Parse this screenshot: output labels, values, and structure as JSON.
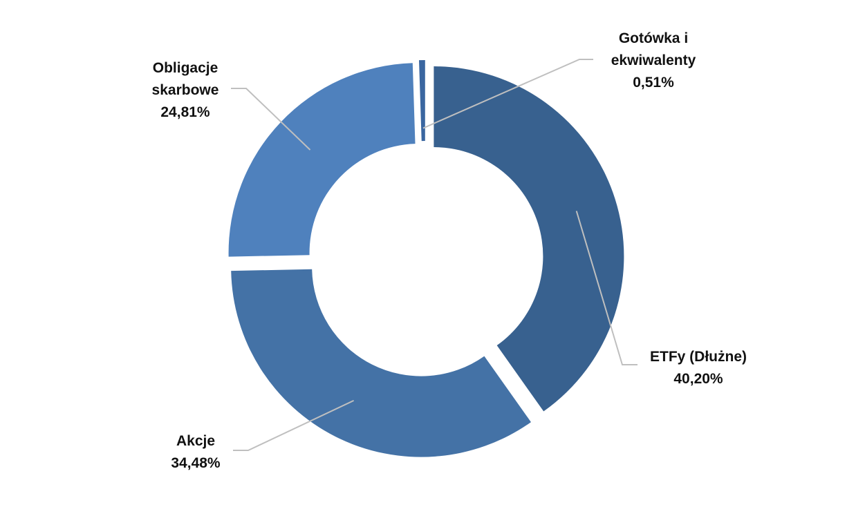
{
  "chart_data": {
    "type": "pie",
    "style": "donut, exploded slices",
    "title": "",
    "legend": "none",
    "slices": [
      {
        "name_lines": [
          "ETFy (Dłużne)"
        ],
        "label": "ETFy (Dłużne)",
        "value": 40.2,
        "value_label": "40,20%",
        "color": "#38618f"
      },
      {
        "name_lines": [
          "Akcje"
        ],
        "label": "Akcje",
        "value": 34.48,
        "value_label": "34,48%",
        "color": "#4472a6"
      },
      {
        "name_lines": [
          "Obligacje",
          "skarbowe"
        ],
        "label": "Obligacje skarbowe",
        "value": 24.81,
        "value_label": "24,81%",
        "color": "#4f81bd"
      },
      {
        "name_lines": [
          "Gotówka i",
          "ekwiwalenty"
        ],
        "label": "Gotówka i ekwiwalenty",
        "value": 0.51,
        "value_label": "0,51%",
        "color": "#3a66a0"
      }
    ]
  }
}
